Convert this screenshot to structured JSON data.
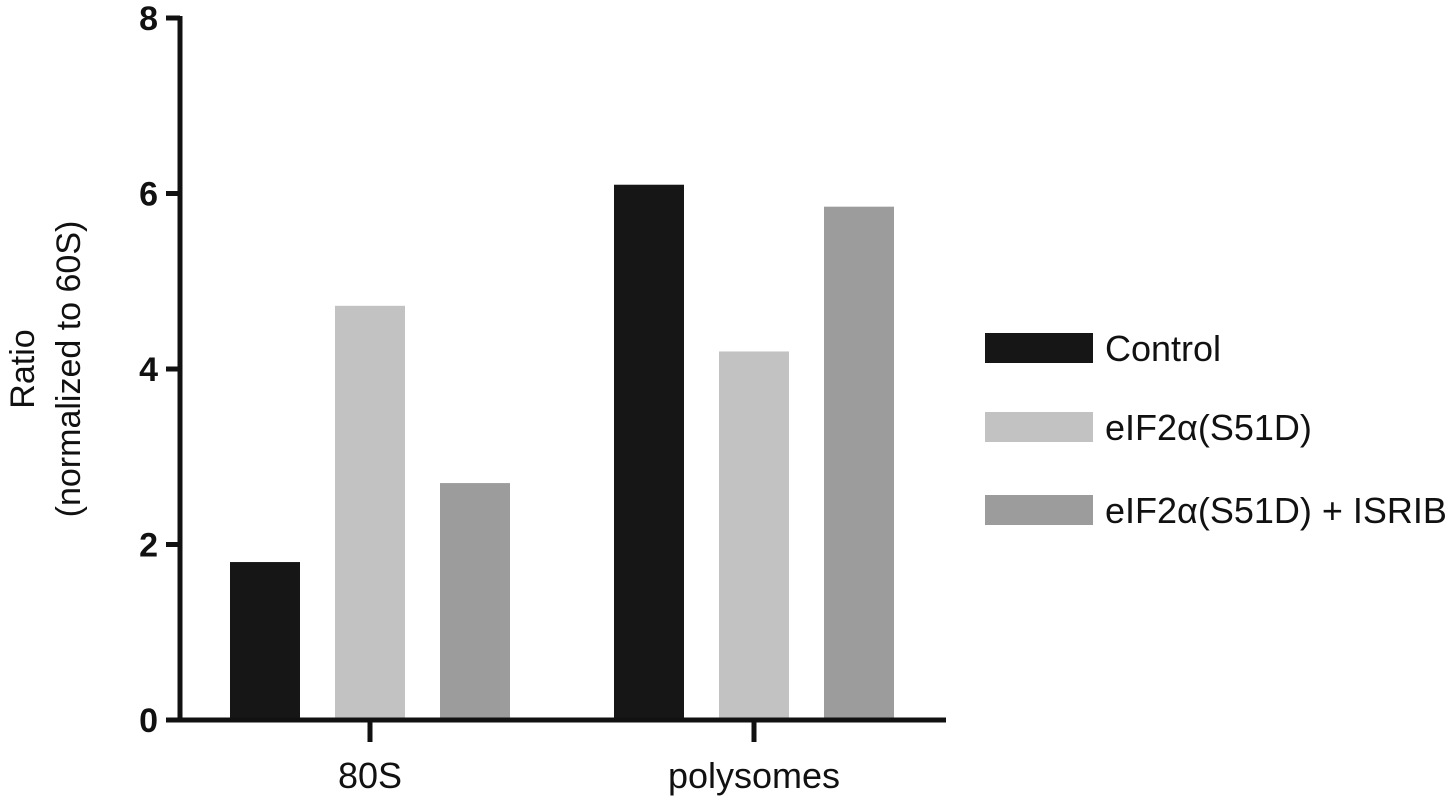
{
  "chart_data": {
    "type": "bar",
    "categories": [
      "80S",
      "polysomes"
    ],
    "series": [
      {
        "name": "Control",
        "values": [
          1.8,
          6.1
        ],
        "color": "#161616"
      },
      {
        "name": "eIF2α(S51D)",
        "values": [
          4.72,
          4.2
        ],
        "color": "#c2c2c2"
      },
      {
        "name": "eIF2α(S51D) + ISRIB",
        "values": [
          2.7,
          5.85
        ],
        "color": "#9c9c9c"
      }
    ],
    "ylabel_line1": "Ratio",
    "ylabel_line2": "(normalized to 60S)",
    "xlabel": "",
    "title": "",
    "ylim": [
      0,
      8
    ],
    "yticks": [
      0,
      2,
      4,
      6,
      8
    ],
    "grid": false,
    "legend_position": "right"
  }
}
